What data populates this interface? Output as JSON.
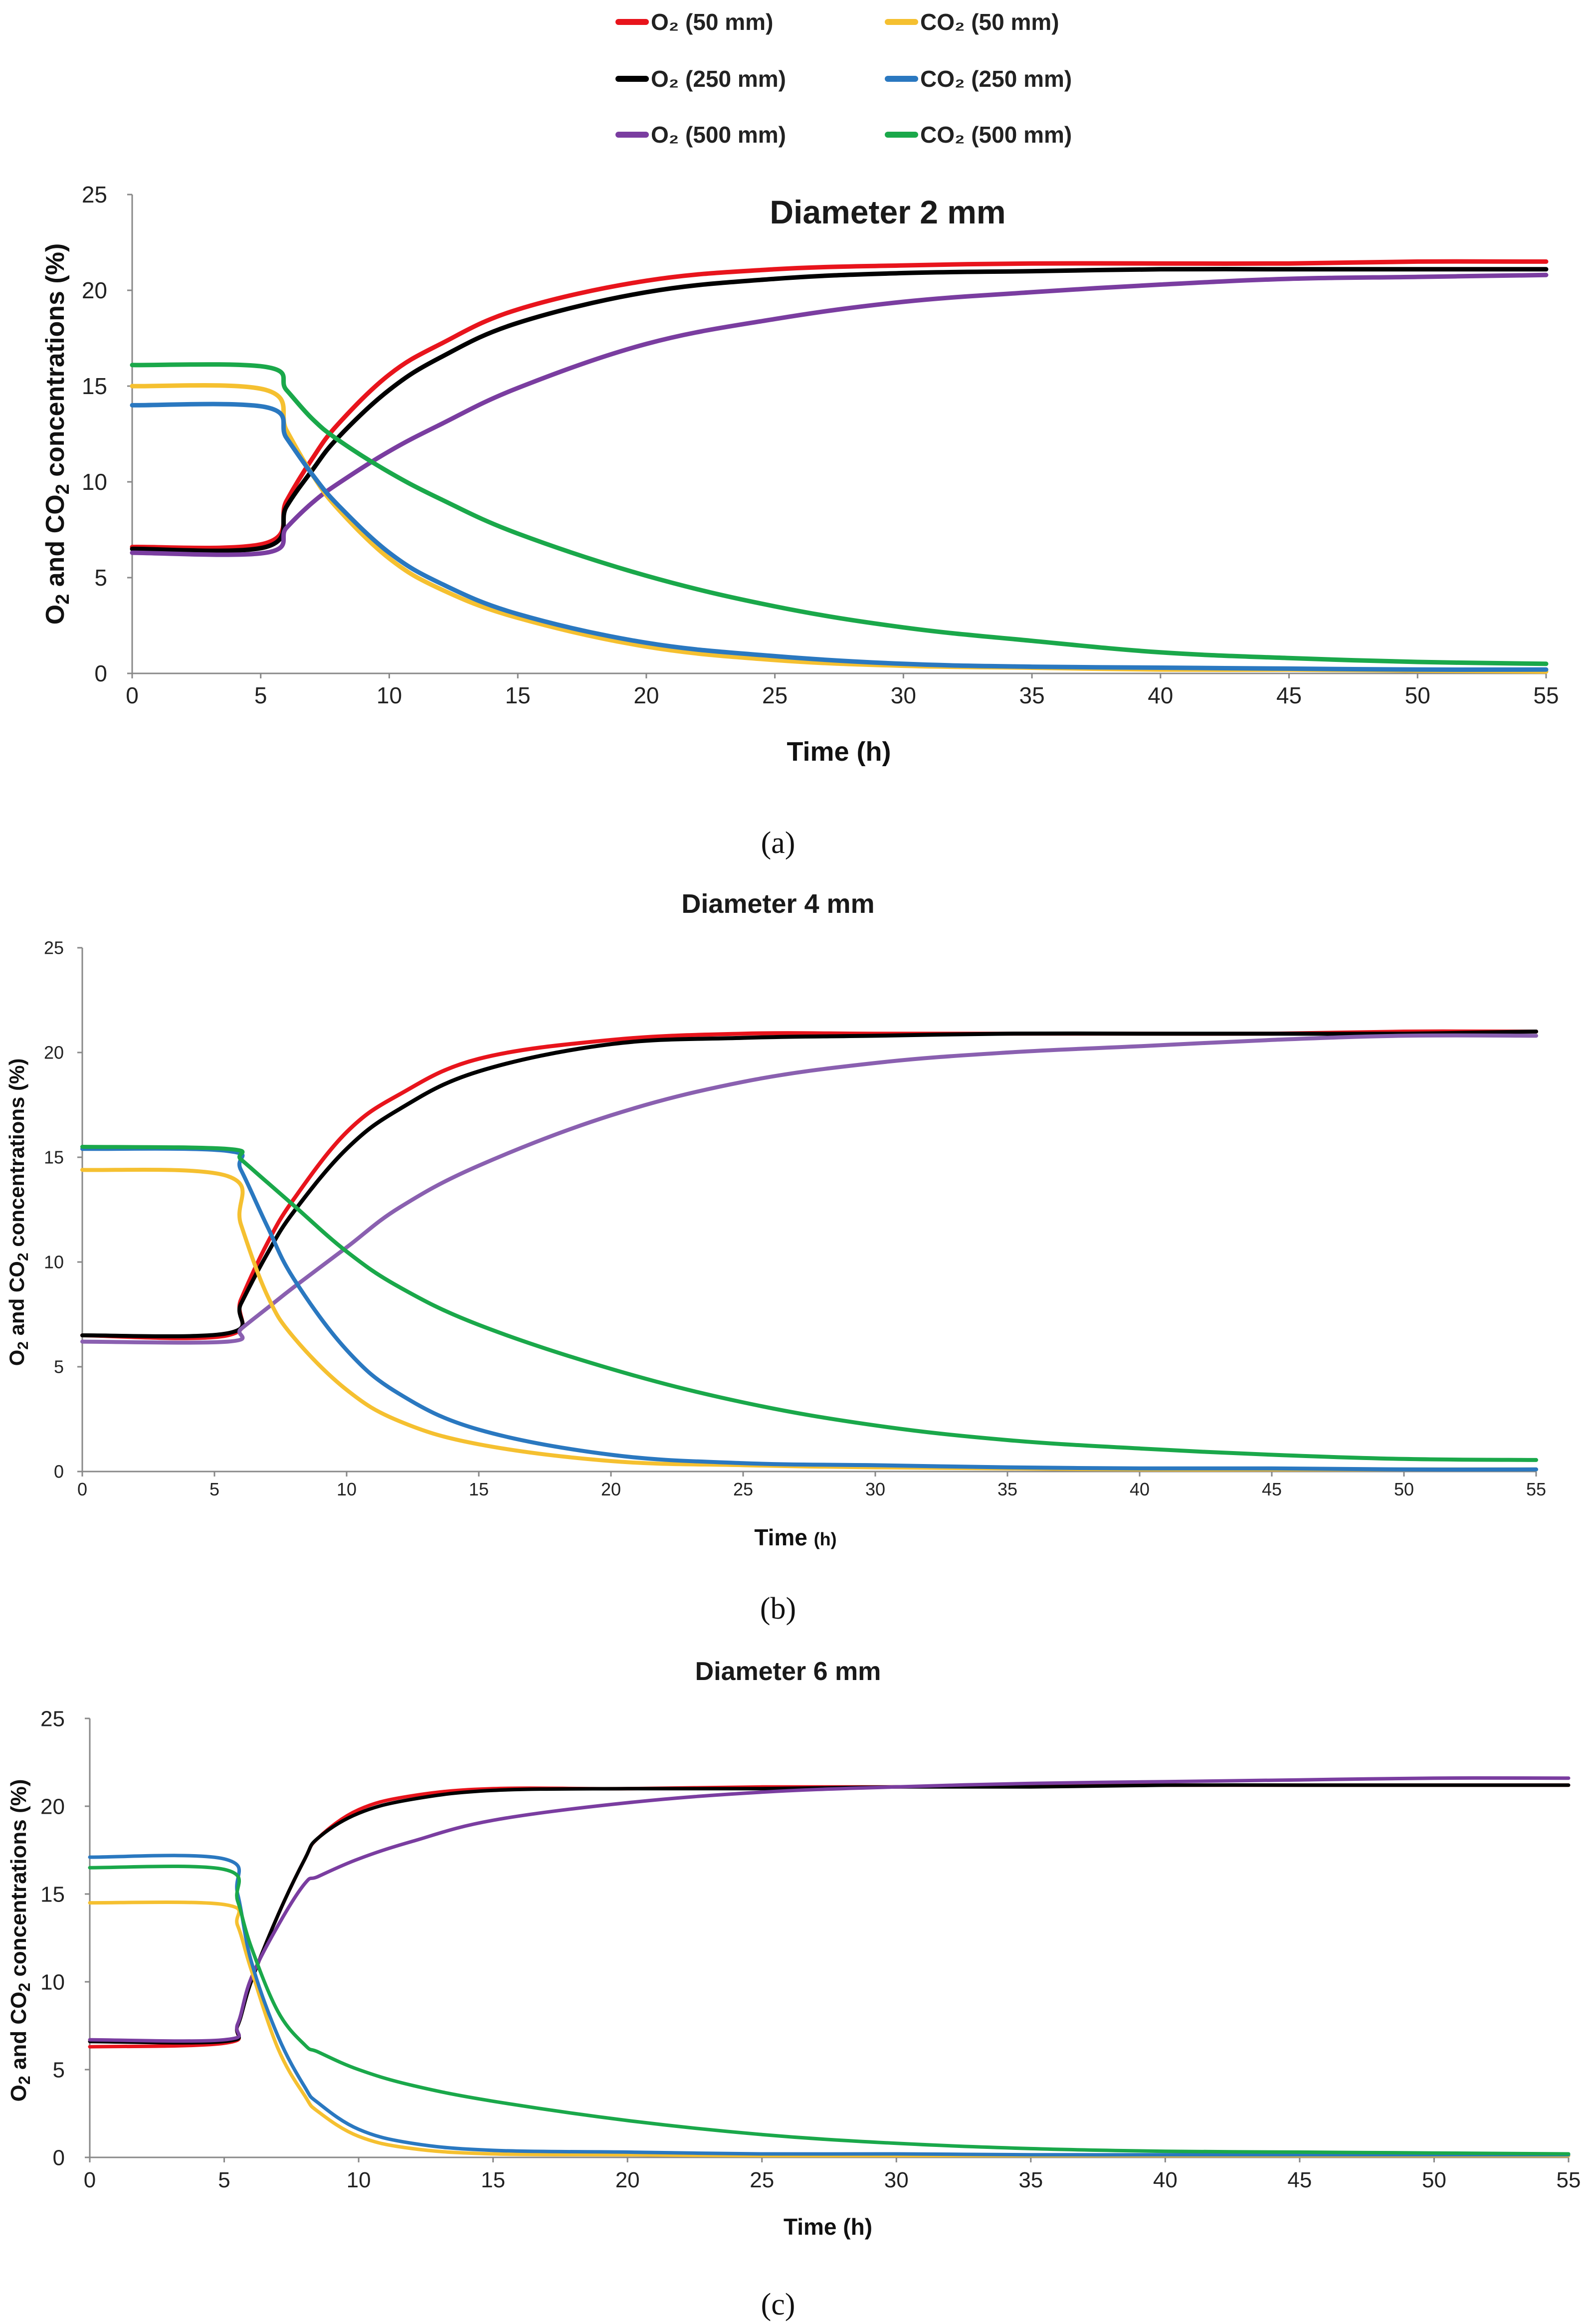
{
  "legend": [
    {
      "label": "O₂ (50 mm)",
      "color": "#e8141c"
    },
    {
      "label": "CO₂ (50 mm)",
      "color": "#f5c030"
    },
    {
      "label": "O₂ (250 mm)",
      "color": "#000000"
    },
    {
      "label": "CO₂ (250 mm)",
      "color": "#2a78c0"
    },
    {
      "label": "O₂ (500 mm)",
      "color": "#7a3da0"
    },
    {
      "label": "CO₂ (500 mm)",
      "color": "#1aa84a"
    }
  ],
  "chart_data": [
    {
      "type": "line",
      "panel_label": "(a)",
      "title": "Diameter 2 mm",
      "xlabel": "Time (h)",
      "ylabel": "O2 and CO2 concentrations (%)",
      "xlim": [
        0,
        55
      ],
      "ylim": [
        0,
        25
      ],
      "xticks": [
        0,
        5,
        10,
        15,
        20,
        25,
        30,
        35,
        40,
        45,
        50,
        55
      ],
      "yticks": [
        0,
        5,
        10,
        15,
        20,
        25
      ],
      "x": [
        0,
        5.2,
        6,
        7,
        8,
        10,
        12,
        15,
        20,
        25,
        30,
        35,
        40,
        45,
        50,
        55
      ],
      "series": [
        {
          "name": "O₂ (50 mm)",
          "color": "#e8141c",
          "values": [
            6.6,
            6.8,
            9.0,
            11.2,
            13.0,
            15.6,
            17.2,
            19.0,
            20.5,
            21.1,
            21.3,
            21.4,
            21.4,
            21.4,
            21.5,
            21.5
          ]
        },
        {
          "name": "O₂ (250 mm)",
          "color": "#000000",
          "values": [
            6.5,
            6.6,
            8.7,
            10.6,
            12.3,
            14.8,
            16.5,
            18.3,
            19.9,
            20.6,
            20.9,
            21.0,
            21.1,
            21.1,
            21.1,
            21.1
          ]
        },
        {
          "name": "O₂ (500 mm)",
          "color": "#7a3da0",
          "values": [
            6.3,
            6.3,
            7.6,
            8.9,
            9.9,
            11.6,
            13.0,
            14.9,
            17.2,
            18.5,
            19.4,
            19.9,
            20.3,
            20.6,
            20.7,
            20.8
          ]
        },
        {
          "name": "CO₂ (50 mm)",
          "color": "#f5c030",
          "values": [
            15.0,
            14.8,
            12.7,
            10.4,
            8.6,
            6.0,
            4.4,
            2.9,
            1.4,
            0.7,
            0.4,
            0.3,
            0.2,
            0.2,
            0.15,
            0.1
          ]
        },
        {
          "name": "CO₂ (250 mm)",
          "color": "#2a78c0",
          "values": [
            14.0,
            13.9,
            12.3,
            10.4,
            8.8,
            6.3,
            4.7,
            3.1,
            1.6,
            0.9,
            0.5,
            0.35,
            0.3,
            0.25,
            0.2,
            0.2
          ]
        },
        {
          "name": "CO₂ (500 mm)",
          "color": "#1aa84a",
          "values": [
            16.1,
            16.0,
            14.8,
            13.3,
            12.2,
            10.5,
            9.1,
            7.3,
            5.1,
            3.5,
            2.4,
            1.7,
            1.1,
            0.8,
            0.6,
            0.5
          ]
        }
      ]
    },
    {
      "type": "line",
      "panel_label": "(b)",
      "title": "Diameter 4 mm",
      "xlabel": "Time",
      "xlabel_unit": "(h)",
      "ylabel": "O2 and CO2 concentrations (%)",
      "xlim": [
        0,
        55
      ],
      "ylim": [
        0,
        25
      ],
      "xticks": [
        0,
        5,
        10,
        15,
        20,
        25,
        30,
        35,
        40,
        45,
        50,
        55
      ],
      "yticks": [
        0,
        5,
        10,
        15,
        20,
        25
      ],
      "x": [
        0,
        5.5,
        6,
        7,
        8,
        10,
        12,
        15,
        20,
        25,
        30,
        35,
        40,
        45,
        50,
        55
      ],
      "series": [
        {
          "name": "O₂ (50 mm)",
          "color": "#e8141c",
          "values": [
            6.5,
            6.5,
            8.2,
            10.9,
            13.0,
            16.2,
            18.0,
            19.7,
            20.6,
            20.9,
            20.9,
            20.9,
            20.9,
            20.9,
            21.0,
            21.0
          ]
        },
        {
          "name": "O₂ (250 mm)",
          "color": "#000000",
          "values": [
            6.5,
            6.6,
            8.0,
            10.4,
            12.4,
            15.4,
            17.3,
            19.1,
            20.4,
            20.7,
            20.8,
            20.9,
            20.9,
            20.9,
            20.9,
            21.0
          ]
        },
        {
          "name": "O₂ (500 mm)",
          "color": "#8a60b0",
          "values": [
            6.2,
            6.2,
            6.8,
            7.8,
            8.8,
            10.7,
            12.6,
            14.6,
            17.0,
            18.6,
            19.5,
            20.0,
            20.3,
            20.6,
            20.8,
            20.8
          ]
        },
        {
          "name": "CO₂ (50 mm)",
          "color": "#f5c030",
          "values": [
            14.4,
            14.1,
            11.8,
            8.4,
            6.4,
            3.9,
            2.4,
            1.3,
            0.5,
            0.3,
            0.2,
            0.15,
            0.1,
            0.1,
            0.1,
            0.1
          ]
        },
        {
          "name": "CO₂ (250 mm)",
          "color": "#2a78c0",
          "values": [
            15.4,
            15.3,
            14.4,
            11.7,
            9.2,
            5.8,
            3.7,
            2.0,
            0.8,
            0.4,
            0.3,
            0.2,
            0.15,
            0.15,
            0.1,
            0.1
          ]
        },
        {
          "name": "CO₂ (500 mm)",
          "color": "#1aa84a",
          "values": [
            15.5,
            15.4,
            14.9,
            13.8,
            12.7,
            10.5,
            8.8,
            7.0,
            4.9,
            3.3,
            2.2,
            1.5,
            1.1,
            0.8,
            0.6,
            0.55
          ]
        }
      ]
    },
    {
      "type": "line",
      "panel_label": "(c)",
      "title": "Diameter 6 mm",
      "xlabel": "Time (h)",
      "ylabel": "O2 and CO2 concentrations (%)",
      "xlim": [
        0,
        55
      ],
      "ylim": [
        0,
        25
      ],
      "xticks": [
        0,
        5,
        10,
        15,
        20,
        25,
        30,
        35,
        40,
        45,
        50,
        55
      ],
      "yticks": [
        0,
        5,
        10,
        15,
        20,
        25
      ],
      "x": [
        0,
        5,
        5.5,
        6,
        7,
        8,
        8.5,
        10,
        12,
        15,
        20,
        25,
        30,
        35,
        40,
        45,
        50,
        55
      ],
      "series": [
        {
          "name": "O₂ (50 mm)",
          "color": "#e8141c",
          "values": [
            6.3,
            6.5,
            7.5,
            10.0,
            13.8,
            17.0,
            18.2,
            19.8,
            20.6,
            21.0,
            21.0,
            21.1,
            21.1,
            21.2,
            21.2,
            21.2,
            21.2,
            21.2
          ]
        },
        {
          "name": "O₂ (250 mm)",
          "color": "#000000",
          "values": [
            6.6,
            6.6,
            7.5,
            10.0,
            13.8,
            17.0,
            18.2,
            19.6,
            20.4,
            20.9,
            21.0,
            21.0,
            21.1,
            21.1,
            21.2,
            21.2,
            21.2,
            21.2
          ]
        },
        {
          "name": "O₂ (500 mm)",
          "color": "#7a3da0",
          "values": [
            6.7,
            6.7,
            7.6,
            10.2,
            13.2,
            15.6,
            16.0,
            17.0,
            18.0,
            19.2,
            20.2,
            20.8,
            21.1,
            21.3,
            21.4,
            21.5,
            21.6,
            21.6
          ]
        },
        {
          "name": "CO₂ (50 mm)",
          "color": "#f5c030",
          "values": [
            14.5,
            14.4,
            13.2,
            10.7,
            6.2,
            3.5,
            2.6,
            1.2,
            0.5,
            0.2,
            0.15,
            0.1,
            0.1,
            0.1,
            0.1,
            0.1,
            0.1,
            0.1
          ]
        },
        {
          "name": "CO₂ (250 mm)",
          "color": "#2a78c0",
          "values": [
            17.1,
            17.0,
            15.0,
            11.2,
            6.9,
            4.0,
            3.1,
            1.6,
            0.8,
            0.4,
            0.3,
            0.2,
            0.2,
            0.15,
            0.15,
            0.15,
            0.15,
            0.15
          ]
        },
        {
          "name": "CO₂ (500 mm)",
          "color": "#1aa84a",
          "values": [
            16.5,
            16.4,
            14.6,
            12.0,
            8.3,
            6.4,
            6.0,
            5.0,
            4.1,
            3.2,
            2.1,
            1.3,
            0.8,
            0.5,
            0.35,
            0.3,
            0.25,
            0.2
          ]
        }
      ]
    }
  ]
}
